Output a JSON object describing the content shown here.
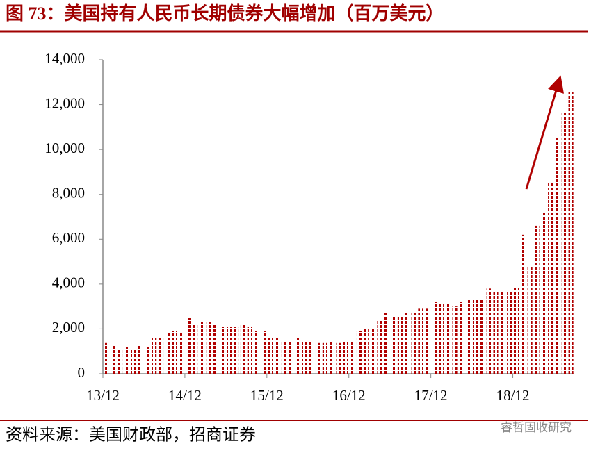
{
  "chart_data": {
    "type": "bar",
    "title": "图 73：美国持有人民币长期债券大幅增加（百万美元）",
    "source": "资料来源：美国财政部，招商证券",
    "watermark": "睿哲固收研究",
    "color": "#b00000",
    "categories": [
      "13/12",
      null,
      null,
      null,
      null,
      null,
      null,
      null,
      null,
      null,
      null,
      null,
      "14/12",
      null,
      null,
      null,
      null,
      null,
      null,
      null,
      null,
      null,
      null,
      null,
      "15/12",
      null,
      null,
      null,
      null,
      null,
      null,
      null,
      null,
      null,
      null,
      null,
      "16/12",
      null,
      null,
      null,
      null,
      null,
      null,
      null,
      null,
      null,
      null,
      null,
      "17/12",
      null,
      null,
      null,
      null,
      null,
      null,
      null,
      null,
      null,
      null,
      null,
      "18/12",
      null,
      null,
      null,
      null,
      null,
      null,
      null,
      null
    ],
    "values": [
      1400,
      1300,
      1100,
      1200,
      1100,
      1300,
      1200,
      1600,
      1700,
      1800,
      1900,
      1800,
      2500,
      2200,
      2300,
      2300,
      2200,
      2100,
      2100,
      2100,
      2200,
      2100,
      1900,
      1900,
      1700,
      1600,
      1500,
      1500,
      1700,
      1500,
      1500,
      1400,
      1400,
      1500,
      1400,
      1500,
      1500,
      1900,
      2000,
      2000,
      2400,
      2700,
      2600,
      2600,
      2700,
      2800,
      2900,
      2900,
      3200,
      3100,
      3100,
      3000,
      3200,
      3300,
      3300,
      3300,
      3800,
      3700,
      3700,
      3700,
      3900,
      6200,
      4800,
      6600,
      7200,
      8500,
      10500,
      11700,
      12600
    ],
    "ylim": [
      0,
      14000
    ],
    "yticks": [
      0,
      {
        "value": 2000,
        "label": "2,000"
      },
      {
        "value": 4000,
        "label": "4,000"
      },
      {
        "value": 6000,
        "label": "6,000"
      },
      {
        "value": 8000,
        "label": "8,000"
      },
      {
        "value": 10000,
        "label": "10,000"
      },
      {
        "value": 12000,
        "label": "12,000"
      },
      {
        "value": 14000,
        "label": "14,000"
      }
    ]
  }
}
